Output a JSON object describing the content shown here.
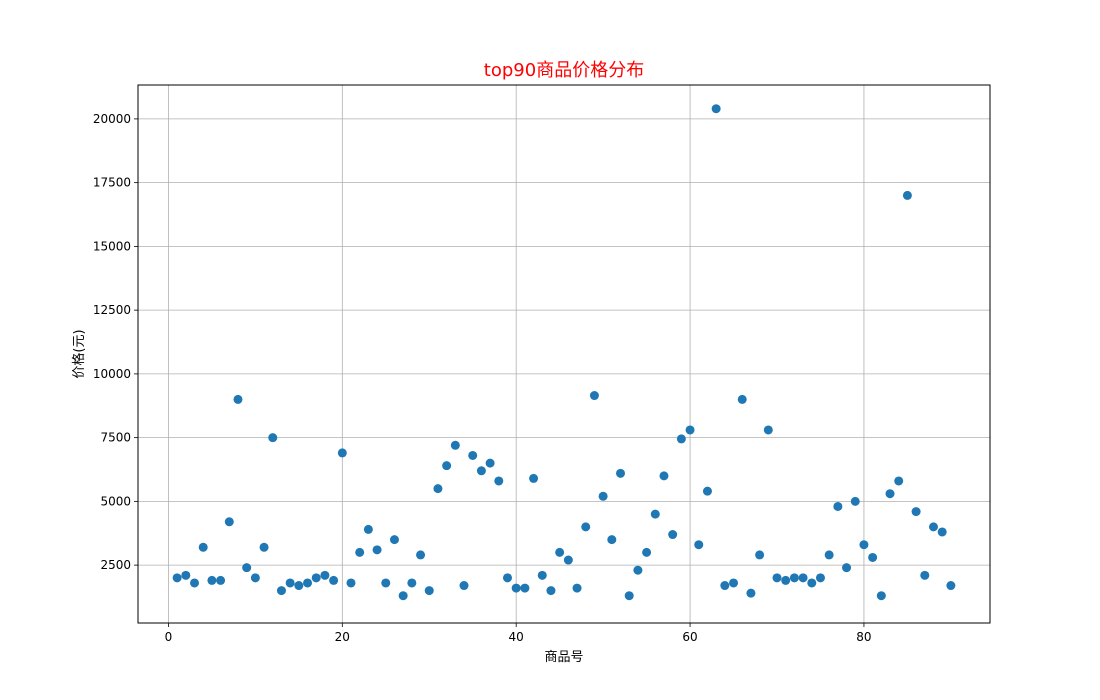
{
  "chart_data": {
    "type": "scatter",
    "title": "top90商品价格分布",
    "title_color": "#ff0000",
    "xlabel": "商品号",
    "ylabel": "价格(元)",
    "xlim": [
      -3.5,
      94.5
    ],
    "ylim": [
      230,
      21330
    ],
    "xticks": [
      0,
      20,
      40,
      60,
      80
    ],
    "yticks": [
      2500,
      5000,
      7500,
      10000,
      12500,
      15000,
      17500,
      20000
    ],
    "grid": true,
    "marker_color": "#1f77b4",
    "x": [
      1,
      2,
      3,
      4,
      5,
      6,
      7,
      8,
      9,
      10,
      11,
      12,
      13,
      14,
      15,
      16,
      17,
      18,
      19,
      20,
      21,
      22,
      23,
      24,
      25,
      26,
      27,
      28,
      29,
      30,
      31,
      32,
      33,
      34,
      35,
      36,
      37,
      38,
      39,
      40,
      41,
      42,
      43,
      44,
      45,
      46,
      47,
      48,
      49,
      50,
      51,
      52,
      53,
      54,
      55,
      56,
      57,
      58,
      59,
      60,
      61,
      62,
      63,
      64,
      65,
      66,
      67,
      68,
      69,
      70,
      71,
      72,
      73,
      74,
      75,
      76,
      77,
      78,
      79,
      80,
      81,
      82,
      83,
      84,
      85,
      86,
      87,
      88,
      89,
      90
    ],
    "y": [
      2000,
      2100,
      1800,
      3200,
      1900,
      1900,
      4200,
      9000,
      2400,
      2000,
      3200,
      7500,
      1500,
      1800,
      1700,
      1800,
      2000,
      2100,
      1900,
      6900,
      1800,
      3000,
      3900,
      3100,
      1800,
      3500,
      1300,
      1800,
      2900,
      1500,
      5500,
      6400,
      7200,
      1700,
      6800,
      6200,
      6500,
      5800,
      2000,
      1600,
      1600,
      5900,
      2100,
      1500,
      3000,
      2700,
      1600,
      4000,
      9150,
      5200,
      3500,
      6100,
      1300,
      2300,
      3000,
      4500,
      6000,
      3700,
      7450,
      7800,
      3300,
      5400,
      20400,
      1700,
      1800,
      9000,
      1400,
      2900,
      7800,
      2000,
      1900,
      2000,
      2000,
      1800,
      2000,
      2900,
      4800,
      2400,
      5000,
      3300,
      2800,
      1300,
      5300,
      5800,
      17000,
      4600,
      2100,
      4000,
      3800,
      1700
    ]
  }
}
